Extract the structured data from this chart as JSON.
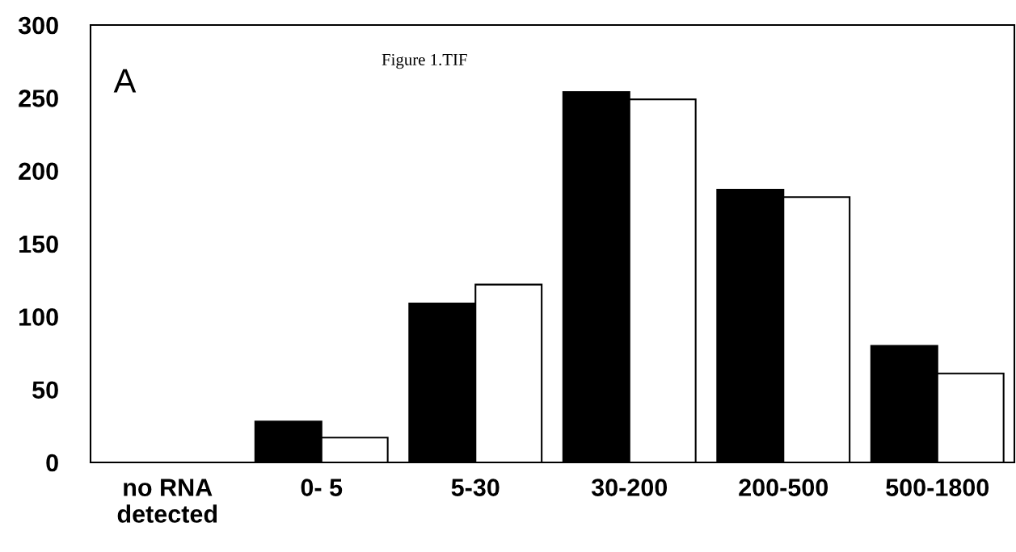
{
  "chart_data": {
    "type": "bar",
    "categories": [
      "no RNA\ndetected",
      "0- 5",
      "5-30",
      "30-200",
      "200-500",
      "500-1800"
    ],
    "series": [
      {
        "color": "#000000",
        "values": [
          0,
          28,
          109,
          254,
          187,
          80
        ]
      },
      {
        "color": "#ffffff",
        "values": [
          0,
          17,
          122,
          249,
          182,
          61
        ]
      }
    ],
    "ylim": [
      0,
      300
    ],
    "yticks": [
      0,
      50,
      100,
      150,
      200,
      250,
      300
    ],
    "annotations": [
      "A",
      "Figure 1.TIF"
    ],
    "grid": false,
    "legend": false
  }
}
